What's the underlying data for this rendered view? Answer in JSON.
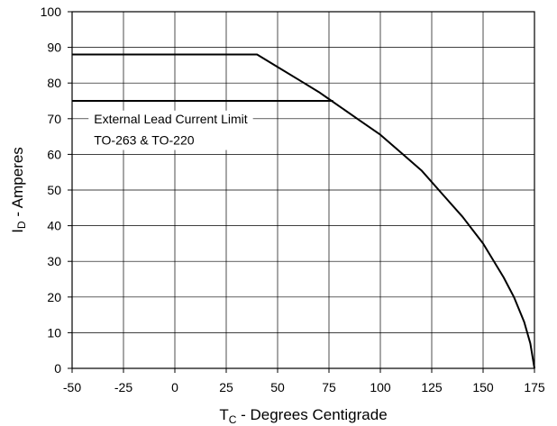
{
  "chart_data": {
    "type": "line",
    "xlabel": {
      "main": "T",
      "sub": "C",
      "rest": " - Degrees Centigrade"
    },
    "ylabel": {
      "main": "I",
      "sub": "D",
      "rest": " - Amperes"
    },
    "xlim": [
      -50,
      175
    ],
    "ylim": [
      0,
      100
    ],
    "x_ticks": [
      -50,
      -25,
      0,
      25,
      50,
      75,
      100,
      125,
      150,
      175
    ],
    "y_ticks": [
      0,
      10,
      20,
      30,
      40,
      50,
      60,
      70,
      80,
      90,
      100
    ],
    "grid": true,
    "annotation": {
      "lines": [
        "External Lead Current Limit",
        "TO-263 & TO-220"
      ],
      "x": -42,
      "y": [
        70,
        64
      ]
    },
    "series": [
      {
        "x": [
          -50,
          40,
          50,
          60,
          70,
          75,
          80,
          90,
          100,
          110,
          120,
          130,
          140,
          150,
          160,
          165,
          170,
          173,
          175
        ],
        "y": [
          88,
          88,
          84.5,
          81,
          77.5,
          75.5,
          73.5,
          69.5,
          65.5,
          60.5,
          55.5,
          49,
          42.5,
          35,
          25.5,
          20,
          13,
          7,
          0
        ]
      },
      {
        "x": [
          -50,
          77
        ],
        "y": [
          75,
          75
        ]
      }
    ]
  }
}
